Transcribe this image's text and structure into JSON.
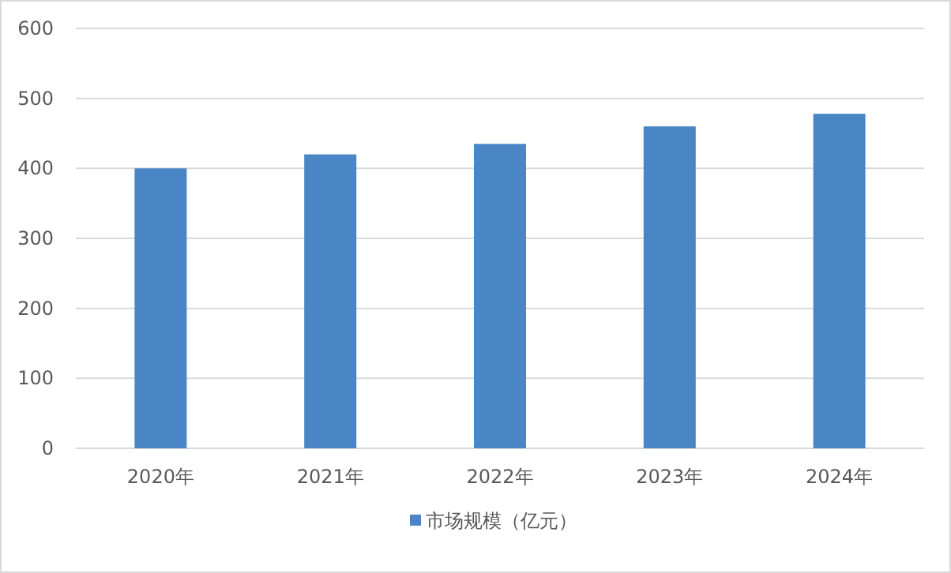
{
  "chart_data": {
    "type": "bar",
    "categories": [
      "2020年",
      "2021年",
      "2022年",
      "2023年",
      "2024年"
    ],
    "series": [
      {
        "name": "市场规模（亿元）",
        "color": "#4a86c5",
        "values": [
          400,
          420,
          435,
          460,
          478
        ]
      }
    ],
    "ylim": [
      0,
      600
    ],
    "yticks": [
      0,
      100,
      200,
      300,
      400,
      500,
      600
    ],
    "grid": "y",
    "legend": "bottom"
  }
}
